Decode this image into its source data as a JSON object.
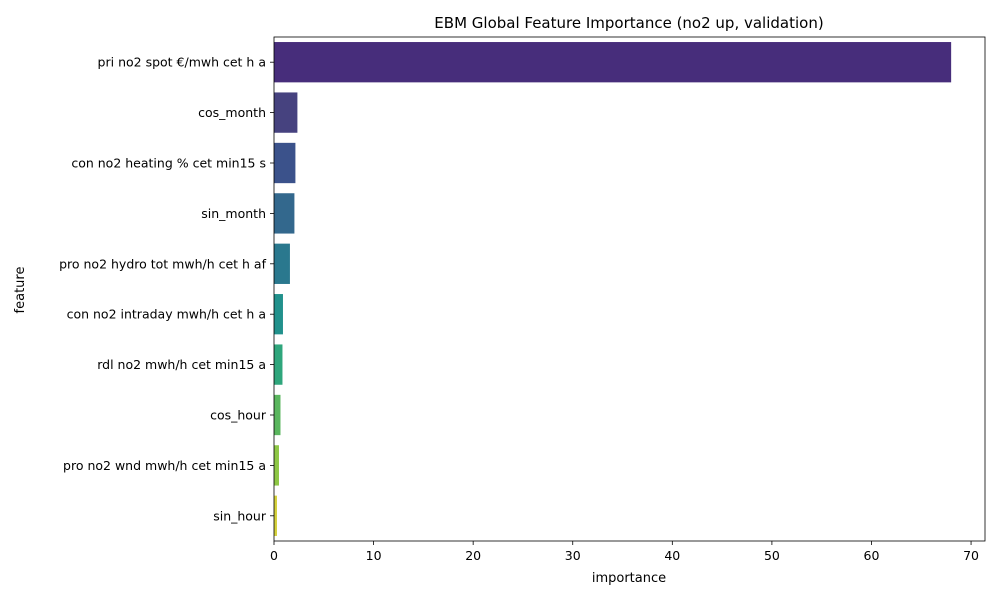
{
  "chart_data": {
    "type": "bar",
    "orientation": "horizontal",
    "title": "EBM Global Feature Importance (no2 up, validation)",
    "xlabel": "importance",
    "ylabel": "feature",
    "xlim": [
      0,
      71.4
    ],
    "xticks": [
      0,
      10,
      20,
      30,
      40,
      50,
      60,
      70
    ],
    "grid": false,
    "categories": [
      "pri no2 spot €/mwh cet h a",
      "cos_month",
      "con no2 heating % cet min15 s",
      "sin_month",
      "pro no2 hydro tot mwh/h cet h af",
      "con no2 intraday mwh/h cet h a",
      "rdl no2 mwh/h cet min15 a",
      "cos_hour",
      "pro no2 wnd mwh/h cet min15 a",
      "sin_hour"
    ],
    "values": [
      68.0,
      2.35,
      2.15,
      2.05,
      1.6,
      0.9,
      0.85,
      0.65,
      0.5,
      0.3
    ],
    "colors": [
      "#472d7b",
      "#46427f",
      "#3b528b",
      "#33688d",
      "#2a788e",
      "#21918c",
      "#2fa67c",
      "#5ab65e",
      "#8ec745",
      "#d5d13c"
    ]
  }
}
